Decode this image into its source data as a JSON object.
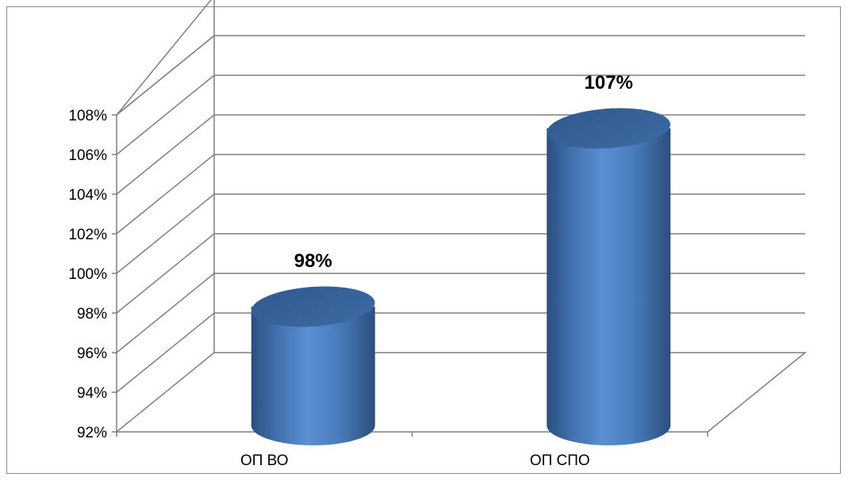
{
  "chart_data": {
    "type": "bar",
    "style": "3d-cylinder",
    "categories": [
      "ОП ВО",
      "ОП СПО"
    ],
    "values": [
      98,
      107
    ],
    "value_labels": [
      "98%",
      "107%"
    ],
    "y_tick_labels": [
      "92%",
      "94%",
      "96%",
      "98%",
      "100%",
      "102%",
      "104%",
      "106%",
      "108%"
    ],
    "ylim": [
      92,
      108
    ],
    "title": "",
    "xlabel": "",
    "ylabel": "",
    "grid": true,
    "colors": {
      "bar": "#4f81bd",
      "bar_dark": "#2a4f7e",
      "bar_light": "#6b9bd8",
      "grid": "#7f7f7f"
    }
  }
}
